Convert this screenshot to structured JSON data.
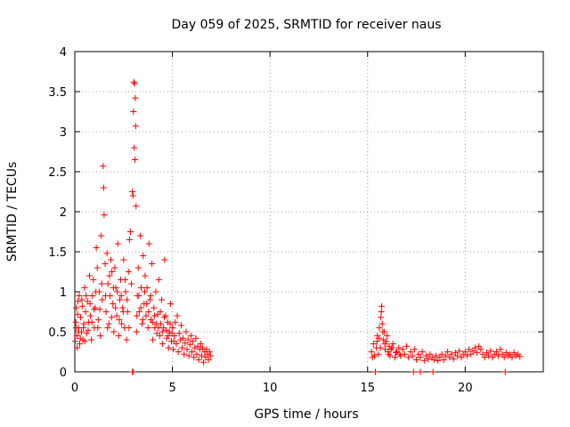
{
  "chart_data": {
    "type": "scatter",
    "title": "Day 059 of 2025, SRMTID for receiver naus",
    "xlabel": "GPS time / hours",
    "ylabel": "SRMTID / TECUs",
    "xlim": [
      0,
      24
    ],
    "ylim": [
      0,
      4
    ],
    "xticks": [
      0,
      5,
      10,
      15,
      20
    ],
    "yticks": [
      0,
      0.5,
      1,
      1.5,
      2,
      2.5,
      3,
      3.5,
      4
    ],
    "xtick_labels": [
      "0",
      "5",
      "10",
      "15",
      "20"
    ],
    "ytick_labels": [
      "0",
      "0.5",
      "1",
      "1.5",
      "2",
      "2.5",
      "3",
      "3.5",
      "4"
    ],
    "grid": true,
    "marker": "+",
    "color": "#ff0000",
    "series": [
      {
        "name": "SRMTID",
        "points": [
          [
            0.02,
            0.38
          ],
          [
            0.05,
            0.62
          ],
          [
            0.08,
            0.8
          ],
          [
            0.1,
            0.45
          ],
          [
            0.14,
            0.72
          ],
          [
            0.18,
            0.55
          ],
          [
            0.22,
            0.95
          ],
          [
            0.25,
            0.35
          ],
          [
            0.3,
            0.68
          ],
          [
            0.34,
            0.5
          ],
          [
            0.38,
            0.82
          ],
          [
            0.42,
            0.4
          ],
          [
            0.46,
            0.6
          ],
          [
            0.5,
            1.05
          ],
          [
            0.55,
            0.75
          ],
          [
            0.6,
            0.48
          ],
          [
            0.65,
            0.88
          ],
          [
            0.7,
            0.62
          ],
          [
            0.75,
            1.2
          ],
          [
            0.8,
            0.7
          ],
          [
            0.85,
            0.4
          ],
          [
            0.9,
            0.95
          ],
          [
            0.95,
            1.15
          ],
          [
            1.0,
            0.55
          ],
          [
            1.05,
            0.8
          ],
          [
            1.1,
            1.55
          ],
          [
            1.15,
            1.3
          ],
          [
            1.2,
            0.65
          ],
          [
            1.25,
            1.0
          ],
          [
            1.3,
            0.45
          ],
          [
            1.35,
            1.7
          ],
          [
            1.4,
            0.9
          ],
          [
            1.45,
            2.57
          ],
          [
            1.48,
            2.3
          ],
          [
            1.5,
            1.96
          ],
          [
            1.55,
            1.35
          ],
          [
            1.6,
            0.75
          ],
          [
            1.65,
            1.48
          ],
          [
            1.7,
            1.1
          ],
          [
            1.75,
            0.6
          ],
          [
            1.8,
            0.95
          ],
          [
            1.85,
            1.4
          ],
          [
            1.9,
            1.25
          ],
          [
            1.95,
            0.85
          ],
          [
            2.0,
            0.5
          ],
          [
            2.05,
            1.3
          ],
          [
            2.1,
            1.05
          ],
          [
            2.15,
            0.7
          ],
          [
            2.2,
            1.6
          ],
          [
            2.25,
            0.45
          ],
          [
            2.3,
            0.9
          ],
          [
            2.35,
            1.15
          ],
          [
            2.4,
            0.6
          ],
          [
            2.45,
            0.8
          ],
          [
            2.5,
            1.4
          ],
          [
            2.55,
            0.55
          ],
          [
            2.6,
            1.0
          ],
          [
            2.65,
            0.4
          ],
          [
            2.7,
            0.75
          ],
          [
            2.75,
            1.25
          ],
          [
            2.8,
            1.65
          ],
          [
            2.85,
            1.75
          ],
          [
            2.9,
            1.1
          ],
          [
            2.95,
            2.25
          ],
          [
            2.98,
            2.2
          ],
          [
            3.0,
            3.25
          ],
          [
            3.02,
            3.62
          ],
          [
            3.04,
            2.8
          ],
          [
            3.06,
            3.6
          ],
          [
            3.08,
            2.65
          ],
          [
            3.1,
            3.42
          ],
          [
            3.12,
            3.07
          ],
          [
            3.14,
            2.07
          ],
          [
            3.16,
            0.5
          ],
          [
            3.2,
            0.95
          ],
          [
            3.25,
            1.3
          ],
          [
            3.3,
            0.75
          ],
          [
            3.35,
            1.7
          ],
          [
            3.4,
            1.05
          ],
          [
            3.45,
            0.6
          ],
          [
            3.5,
            1.45
          ],
          [
            3.55,
            0.85
          ],
          [
            3.6,
            1.2
          ],
          [
            3.65,
            0.7
          ],
          [
            3.7,
            1.05
          ],
          [
            3.75,
            0.55
          ],
          [
            3.8,
            1.6
          ],
          [
            3.85,
            0.9
          ],
          [
            3.9,
            0.65
          ],
          [
            3.95,
            1.35
          ],
          [
            4.0,
            0.4
          ],
          [
            4.05,
            0.8
          ],
          [
            4.1,
            0.55
          ],
          [
            4.15,
            1.0
          ],
          [
            4.2,
            0.48
          ],
          [
            4.25,
            0.72
          ],
          [
            4.3,
            1.15
          ],
          [
            4.35,
            0.45
          ],
          [
            4.4,
            0.6
          ],
          [
            4.45,
            0.9
          ],
          [
            4.5,
            0.35
          ],
          [
            4.55,
            0.55
          ],
          [
            4.6,
            1.4
          ],
          [
            4.65,
            0.7
          ],
          [
            4.7,
            0.42
          ],
          [
            4.75,
            0.62
          ],
          [
            4.8,
            0.3
          ],
          [
            4.85,
            0.5
          ],
          [
            4.9,
            0.85
          ],
          [
            4.95,
            0.38
          ],
          [
            5.0,
            0.55
          ],
          [
            5.05,
            0.28
          ],
          [
            5.1,
            0.45
          ],
          [
            5.15,
            0.62
          ],
          [
            5.2,
            0.35
          ],
          [
            5.25,
            0.7
          ],
          [
            5.3,
            0.25
          ],
          [
            5.35,
            0.48
          ],
          [
            5.4,
            0.4
          ],
          [
            5.45,
            0.58
          ],
          [
            5.5,
            0.3
          ],
          [
            5.55,
            0.42
          ],
          [
            5.6,
            0.22
          ],
          [
            5.65,
            0.36
          ],
          [
            5.7,
            0.5
          ],
          [
            5.75,
            0.28
          ],
          [
            5.8,
            0.4
          ],
          [
            5.85,
            0.2
          ],
          [
            5.9,
            0.34
          ],
          [
            5.95,
            0.45
          ],
          [
            6.0,
            0.25
          ],
          [
            6.05,
            0.38
          ],
          [
            6.1,
            0.18
          ],
          [
            6.15,
            0.3
          ],
          [
            6.2,
            0.42
          ],
          [
            6.25,
            0.22
          ],
          [
            6.3,
            0.32
          ],
          [
            6.35,
            0.15
          ],
          [
            6.4,
            0.28
          ],
          [
            6.45,
            0.35
          ],
          [
            6.5,
            0.2
          ],
          [
            6.55,
            0.3
          ],
          [
            6.6,
            0.12
          ],
          [
            6.65,
            0.25
          ],
          [
            6.7,
            0.18
          ],
          [
            6.75,
            0.28
          ],
          [
            6.8,
            0.22
          ],
          [
            6.85,
            0.15
          ],
          [
            6.9,
            0.25
          ],
          [
            6.95,
            0.2
          ],
          [
            0.07,
            0.55
          ],
          [
            0.12,
            0.3
          ],
          [
            0.16,
            0.88
          ],
          [
            0.2,
            0.5
          ],
          [
            0.28,
            0.42
          ],
          [
            0.36,
            0.9
          ],
          [
            0.44,
            0.55
          ],
          [
            0.52,
            0.38
          ],
          [
            0.58,
            0.95
          ],
          [
            0.68,
            0.52
          ],
          [
            0.78,
            0.85
          ],
          [
            0.88,
            0.62
          ],
          [
            0.98,
            0.78
          ],
          [
            1.08,
            1.0
          ],
          [
            1.18,
            0.55
          ],
          [
            1.28,
            0.78
          ],
          [
            1.38,
            1.1
          ],
          [
            1.58,
            0.95
          ],
          [
            1.68,
            0.55
          ],
          [
            1.78,
            1.2
          ],
          [
            1.88,
            0.68
          ],
          [
            1.98,
            1.05
          ],
          [
            2.08,
            0.8
          ],
          [
            2.18,
            1.0
          ],
          [
            2.28,
            0.65
          ],
          [
            2.38,
            0.95
          ],
          [
            2.48,
            0.75
          ],
          [
            2.58,
            1.15
          ],
          [
            2.68,
            0.9
          ],
          [
            2.78,
            0.55
          ],
          [
            3.18,
            0.7
          ],
          [
            3.28,
            0.95
          ],
          [
            3.38,
            0.8
          ],
          [
            3.48,
            0.65
          ],
          [
            3.58,
            1.0
          ],
          [
            3.68,
            0.85
          ],
          [
            3.78,
            0.75
          ],
          [
            3.88,
            0.95
          ],
          [
            3.98,
            0.62
          ],
          [
            4.08,
            0.7
          ],
          [
            4.18,
            0.6
          ],
          [
            4.28,
            0.55
          ],
          [
            4.38,
            0.75
          ],
          [
            4.48,
            0.5
          ],
          [
            4.58,
            0.68
          ],
          [
            4.68,
            0.52
          ],
          [
            4.78,
            0.45
          ],
          [
            4.88,
            0.6
          ],
          [
            4.98,
            0.48
          ],
          [
            5.08,
            0.38
          ],
          [
            2.95,
            0.0
          ],
          [
            3.0,
            0.0
          ],
          [
            15.2,
            0.25
          ],
          [
            15.3,
            0.35
          ],
          [
            15.35,
            0.2
          ],
          [
            15.4,
            0.0
          ],
          [
            15.45,
            0.3
          ],
          [
            15.5,
            0.45
          ],
          [
            15.55,
            0.22
          ],
          [
            15.6,
            0.55
          ],
          [
            15.65,
            0.3
          ],
          [
            15.7,
            0.75
          ],
          [
            15.72,
            0.82
          ],
          [
            15.75,
            0.6
          ],
          [
            15.8,
            0.4
          ],
          [
            15.85,
            0.5
          ],
          [
            15.9,
            0.28
          ],
          [
            15.95,
            0.38
          ],
          [
            16.0,
            0.45
          ],
          [
            16.05,
            0.25
          ],
          [
            16.1,
            0.32
          ],
          [
            16.15,
            0.2
          ],
          [
            16.2,
            0.28
          ],
          [
            16.3,
            0.35
          ],
          [
            16.4,
            0.18
          ],
          [
            16.5,
            0.25
          ],
          [
            16.6,
            0.3
          ],
          [
            16.7,
            0.2
          ],
          [
            16.8,
            0.28
          ],
          [
            16.9,
            0.22
          ],
          [
            17.0,
            0.32
          ],
          [
            17.1,
            0.18
          ],
          [
            17.2,
            0.25
          ],
          [
            17.3,
            0.2
          ],
          [
            17.4,
            0.28
          ],
          [
            17.5,
            0.15
          ],
          [
            17.6,
            0.22
          ],
          [
            17.7,
            0.18
          ],
          [
            17.8,
            0.25
          ],
          [
            17.9,
            0.14
          ],
          [
            18.0,
            0.2
          ],
          [
            18.1,
            0.16
          ],
          [
            18.2,
            0.22
          ],
          [
            18.3,
            0.18
          ],
          [
            18.4,
            0.15
          ],
          [
            18.5,
            0.2
          ],
          [
            18.6,
            0.14
          ],
          [
            18.7,
            0.18
          ],
          [
            18.8,
            0.22
          ],
          [
            18.9,
            0.15
          ],
          [
            19.0,
            0.2
          ],
          [
            19.1,
            0.25
          ],
          [
            19.2,
            0.18
          ],
          [
            19.3,
            0.22
          ],
          [
            19.4,
            0.16
          ],
          [
            19.5,
            0.24
          ],
          [
            19.6,
            0.2
          ],
          [
            19.7,
            0.26
          ],
          [
            19.8,
            0.18
          ],
          [
            19.9,
            0.22
          ],
          [
            20.0,
            0.25
          ],
          [
            20.1,
            0.2
          ],
          [
            20.2,
            0.28
          ],
          [
            20.3,
            0.22
          ],
          [
            20.4,
            0.26
          ],
          [
            20.5,
            0.3
          ],
          [
            20.6,
            0.24
          ],
          [
            20.7,
            0.32
          ],
          [
            20.8,
            0.28
          ],
          [
            20.9,
            0.22
          ],
          [
            21.0,
            0.18
          ],
          [
            21.1,
            0.24
          ],
          [
            21.2,
            0.2
          ],
          [
            21.3,
            0.26
          ],
          [
            21.4,
            0.18
          ],
          [
            21.5,
            0.22
          ],
          [
            21.6,
            0.25
          ],
          [
            21.7,
            0.2
          ],
          [
            21.8,
            0.28
          ],
          [
            21.9,
            0.22
          ],
          [
            22.0,
            0.18
          ],
          [
            22.1,
            0.24
          ],
          [
            22.2,
            0.2
          ],
          [
            22.3,
            0.22
          ],
          [
            22.4,
            0.18
          ],
          [
            22.5,
            0.24
          ],
          [
            22.6,
            0.2
          ],
          [
            22.7,
            0.22
          ],
          [
            22.8,
            0.19
          ],
          [
            15.25,
            0.18
          ],
          [
            15.48,
            0.38
          ],
          [
            15.58,
            0.42
          ],
          [
            15.68,
            0.68
          ],
          [
            15.78,
            0.5
          ],
          [
            15.88,
            0.35
          ],
          [
            16.08,
            0.22
          ],
          [
            16.25,
            0.3
          ],
          [
            16.45,
            0.24
          ],
          [
            16.65,
            0.22
          ],
          [
            17.35,
            0.0
          ],
          [
            17.7,
            0.0
          ],
          [
            18.35,
            0.0
          ],
          [
            22.05,
            0.0
          ]
        ]
      }
    ]
  }
}
